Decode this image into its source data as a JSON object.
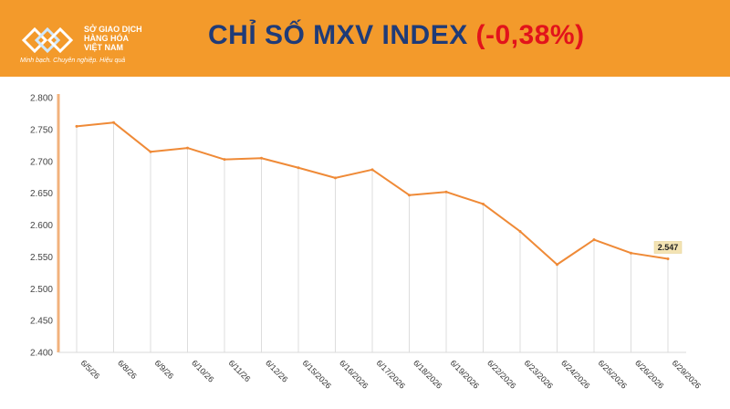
{
  "header": {
    "brand_line1": "SỞ GIAO DỊCH",
    "brand_line2": "HÀNG HÓA",
    "brand_line3": "VIỆT NAM",
    "slogan": "Minh bạch. Chuyên nghiệp. Hiệu quả",
    "title_main": "CHỈ SỐ MXV INDEX ",
    "title_change": "(-0,38%)",
    "colors": {
      "band": "#f39a2b",
      "title": "#1f3b78",
      "change": "#e2131b",
      "line": "#ef8a37"
    }
  },
  "chart_data": {
    "type": "line",
    "categories": [
      "6/5/26",
      "6/8/26",
      "6/9/26",
      "6/10/26",
      "6/11/26",
      "6/12/26",
      "6/15/2026",
      "6/16/2026",
      "6/17/2026",
      "6/18/2026",
      "6/19/2026",
      "6/22/2026",
      "6/23/2026",
      "6/24/2026",
      "6/25/2026",
      "6/26/2026",
      "6/29/2026"
    ],
    "values": [
      2755,
      2761,
      2715,
      2721,
      2703,
      2705,
      2690,
      2674,
      2687,
      2647,
      2652,
      2633,
      2590,
      2538,
      2577,
      2556,
      2547
    ],
    "yticks": [
      "2.400",
      "2.450",
      "2.500",
      "2.550",
      "2.600",
      "2.650",
      "2.700",
      "2.750",
      "2.800"
    ],
    "ylim": [
      2400,
      2800
    ],
    "end_label": "2.547",
    "grid": false,
    "droplines": true
  }
}
